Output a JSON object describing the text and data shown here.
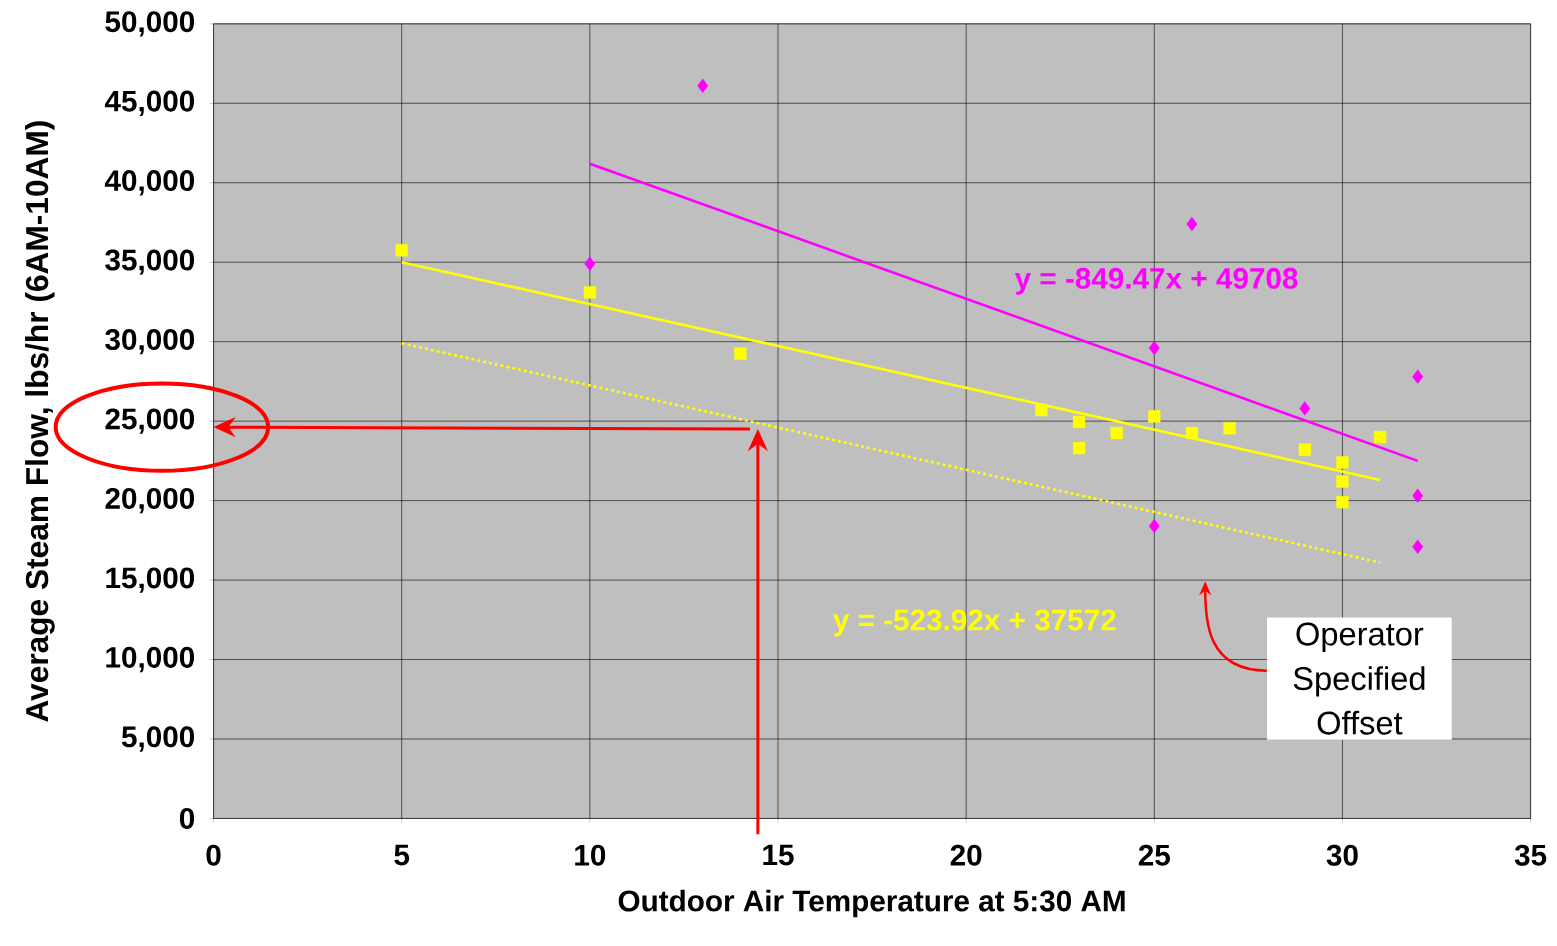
{
  "chart_data": {
    "type": "scatter",
    "xlabel": "Outdoor Air Temperature at 5:30 AM",
    "ylabel": "Average Steam Flow, lbs/hr (6AM-10AM)",
    "xlim": [
      0,
      35
    ],
    "xticks": [
      0,
      5,
      10,
      15,
      20,
      25,
      30,
      35
    ],
    "ylim": [
      0,
      50000
    ],
    "yticks": [
      {
        "value": 0,
        "label": "0"
      },
      {
        "value": 5000,
        "label": "5,000"
      },
      {
        "value": 10000,
        "label": "10,000"
      },
      {
        "value": 15000,
        "label": "15,000"
      },
      {
        "value": 20000,
        "label": "20,000"
      },
      {
        "value": 25000,
        "label": "25,000"
      },
      {
        "value": 30000,
        "label": "30,000"
      },
      {
        "value": 35000,
        "label": "35,000"
      },
      {
        "value": 40000,
        "label": "40,000"
      },
      {
        "value": 45000,
        "label": "45,000"
      },
      {
        "value": 50000,
        "label": "50,000"
      }
    ],
    "grid": true,
    "series": [
      {
        "marker": "square",
        "color": "#ffff00",
        "x": [
          5,
          10,
          14,
          22,
          23,
          23,
          24,
          25,
          26,
          27,
          29,
          30,
          30,
          30,
          31
        ],
        "values": [
          35750,
          33100,
          29250,
          25700,
          24950,
          23300,
          24250,
          25300,
          24250,
          24550,
          23200,
          22400,
          21200,
          19900,
          24000
        ]
      },
      {
        "marker": "diamond",
        "color": "#ff00ff",
        "x": [
          10,
          13,
          25,
          25,
          26,
          29,
          32,
          32,
          32
        ],
        "values": [
          34900,
          46100,
          29600,
          18400,
          37400,
          25800,
          27800,
          20300,
          17100
        ]
      },
      {
        "type": "line",
        "marker": "none",
        "line_style": "solid",
        "color": "#ff00ff",
        "x": [
          10,
          32
        ],
        "values": [
          41200,
          22500
        ]
      },
      {
        "type": "line",
        "marker": "none",
        "line_style": "solid",
        "color": "#ffff00",
        "x": [
          5,
          31
        ],
        "values": [
          35000,
          21300
        ]
      },
      {
        "type": "line",
        "marker": "none",
        "line_style": "dotted",
        "color": "#ffff00",
        "x": [
          5,
          31
        ],
        "values": [
          29900,
          16100
        ]
      }
    ],
    "annotations": [
      "y = -849.47x + 49708",
      "y = -523.92x + 37572",
      "Operator Specified Offset"
    ]
  }
}
